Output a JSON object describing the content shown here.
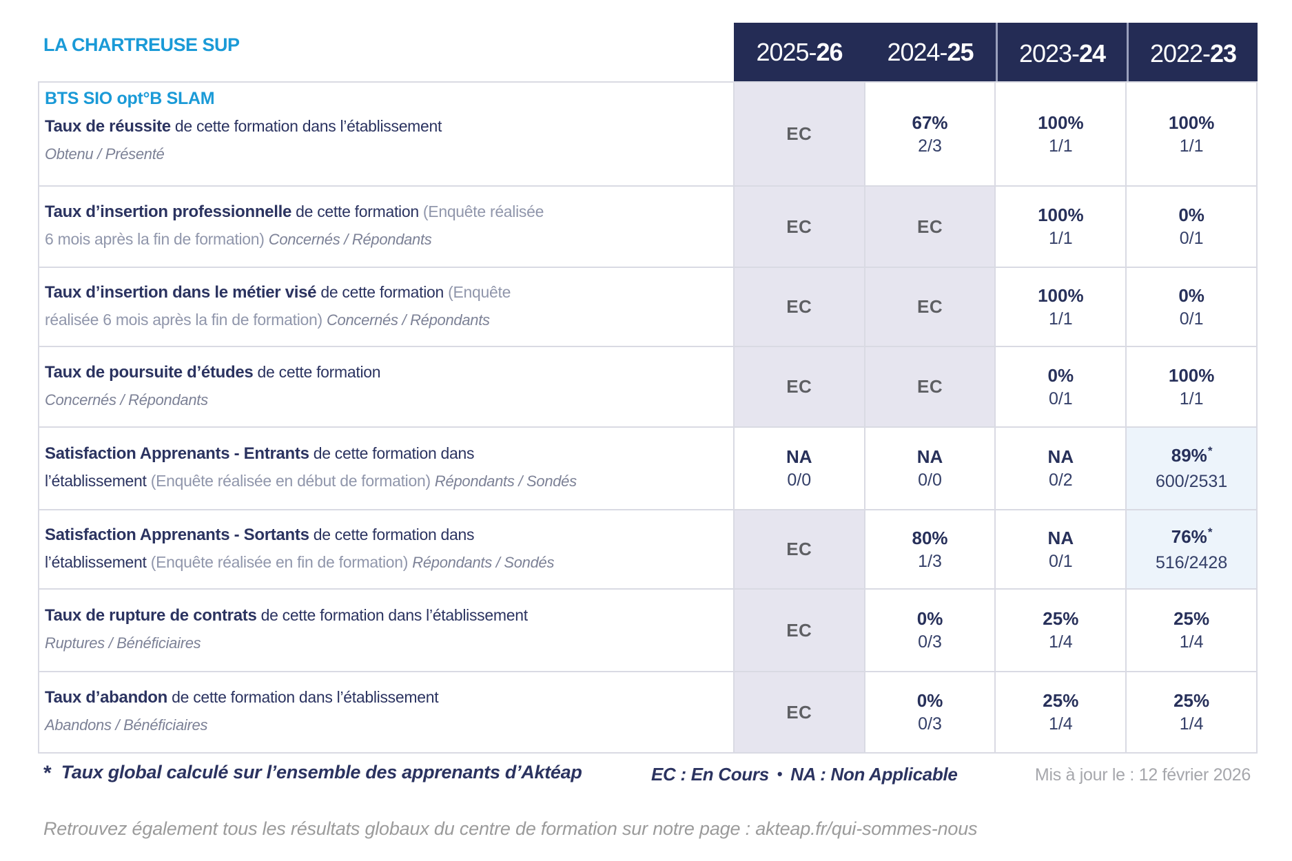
{
  "org_title": "LA CHARTREUSE SUP",
  "header": {
    "years": [
      {
        "key": "2025-26",
        "prefix": "2025-",
        "suffix": "26",
        "tall": false,
        "sep": false
      },
      {
        "key": "2024-25",
        "prefix": "2024-",
        "suffix": "25",
        "tall": false,
        "sep": false
      },
      {
        "key": "2023-24",
        "prefix": "2023-",
        "suffix": "24",
        "tall": true,
        "sep": true
      },
      {
        "key": "2022-23",
        "prefix": "2022-",
        "suffix": "23",
        "tall": true,
        "sep": true
      }
    ]
  },
  "table": {
    "rows": [
      {
        "name": "taux-de-reussite",
        "label_lines": [
          [
            [
              "p",
              "BTS SIO opt°B SLAM"
            ]
          ],
          [
            [
              "b",
              "Taux de réussite"
            ],
            [
              "n",
              " de cette formation dans l’établissement"
            ]
          ],
          [
            [
              "i",
              "Obtenu / Présenté"
            ]
          ]
        ],
        "cells": [
          {
            "kind": "ec",
            "bg": "lav"
          },
          {
            "kind": "val",
            "pct": "67%",
            "frac": "2/3"
          },
          {
            "kind": "val",
            "pct": "100%",
            "frac": "1/1"
          },
          {
            "kind": "val",
            "pct": "100%",
            "frac": "1/1"
          }
        ]
      },
      {
        "name": "taux-insertion-professionnelle",
        "label_lines": [
          [
            [
              "b",
              "Taux d’insertion professionnelle"
            ],
            [
              "n",
              " de cette formation "
            ],
            [
              "m",
              "(Enquête réalisée"
            ]
          ],
          [
            [
              "m",
              "6 mois après la fin de formation) "
            ],
            [
              "i",
              "Concernés / Répondants"
            ]
          ]
        ],
        "cells": [
          {
            "kind": "ec",
            "bg": "lav"
          },
          {
            "kind": "ec",
            "bg": "lav"
          },
          {
            "kind": "val",
            "pct": "100%",
            "frac": "1/1"
          },
          {
            "kind": "val",
            "pct": "0%",
            "frac": "0/1"
          }
        ]
      },
      {
        "name": "taux-insertion-metier-vise",
        "label_lines": [
          [
            [
              "b",
              "Taux d’insertion dans le métier visé"
            ],
            [
              "n",
              " de cette formation "
            ],
            [
              "m",
              "(Enquête"
            ]
          ],
          [
            [
              "m",
              "réalisée 6 mois après la fin de formation) "
            ],
            [
              "i",
              "Concernés / Répondants"
            ]
          ]
        ],
        "cells": [
          {
            "kind": "ec",
            "bg": "lav"
          },
          {
            "kind": "ec",
            "bg": "lav"
          },
          {
            "kind": "val",
            "pct": "100%",
            "frac": "1/1"
          },
          {
            "kind": "val",
            "pct": "0%",
            "frac": "0/1"
          }
        ]
      },
      {
        "name": "taux-poursuite-etudes",
        "label_lines": [
          [
            [
              "b",
              "Taux de poursuite d’études"
            ],
            [
              "n",
              " de cette formation"
            ]
          ],
          [
            [
              "i",
              "Concernés / Répondants"
            ]
          ]
        ],
        "cells": [
          {
            "kind": "ec",
            "bg": "lav"
          },
          {
            "kind": "ec",
            "bg": "lav"
          },
          {
            "kind": "val",
            "pct": "0%",
            "frac": "0/1"
          },
          {
            "kind": "val",
            "pct": "100%",
            "frac": "1/1"
          }
        ]
      },
      {
        "name": "satisfaction-apprenants-entrants",
        "label_lines": [
          [
            [
              "b",
              "Satisfaction Apprenants - Entrants"
            ],
            [
              "n",
              " de cette formation dans"
            ]
          ],
          [
            [
              "n",
              "l’établissement "
            ],
            [
              "m",
              "(Enquête réalisée en début de formation) "
            ],
            [
              "i",
              "Répondants / Sondés"
            ]
          ]
        ],
        "cells": [
          {
            "kind": "na",
            "frac": "0/0"
          },
          {
            "kind": "na",
            "frac": "0/0"
          },
          {
            "kind": "na",
            "frac": "0/2"
          },
          {
            "kind": "val",
            "pct": "89%",
            "star": true,
            "frac": "600/2531",
            "bg": "blue"
          }
        ]
      },
      {
        "name": "satisfaction-apprenants-sortants",
        "label_lines": [
          [
            [
              "b",
              "Satisfaction Apprenants - Sortants"
            ],
            [
              "n",
              " de cette formation dans"
            ]
          ],
          [
            [
              "n",
              "l’établissement "
            ],
            [
              "m",
              "(Enquête réalisée en fin de formation) "
            ],
            [
              "i",
              "Répondants / Sondés"
            ]
          ]
        ],
        "cells": [
          {
            "kind": "ec",
            "bg": "lav"
          },
          {
            "kind": "val",
            "pct": "80%",
            "frac": "1/3"
          },
          {
            "kind": "na",
            "frac": "0/1"
          },
          {
            "kind": "val",
            "pct": "76%",
            "star": true,
            "frac": "516/2428",
            "bg": "blue"
          }
        ]
      },
      {
        "name": "taux-rupture-contrats",
        "label_lines": [
          [
            [
              "b",
              "Taux de rupture de contrats"
            ],
            [
              "n",
              " de cette formation dans l’établissement"
            ]
          ],
          [
            [
              "i",
              "Ruptures / Bénéficiaires"
            ]
          ]
        ],
        "cells": [
          {
            "kind": "ec",
            "bg": "lav"
          },
          {
            "kind": "val",
            "pct": "0%",
            "frac": "0/3"
          },
          {
            "kind": "val",
            "pct": "25%",
            "frac": "1/4"
          },
          {
            "kind": "val",
            "pct": "25%",
            "frac": "1/4"
          }
        ]
      },
      {
        "name": "taux-abandon",
        "label_lines": [
          [
            [
              "b",
              "Taux d’abandon"
            ],
            [
              "n",
              " de cette formation dans l’établissement"
            ]
          ],
          [
            [
              "i",
              "Abandons / Bénéficiaires"
            ]
          ]
        ],
        "cells": [
          {
            "kind": "ec",
            "bg": "lav"
          },
          {
            "kind": "val",
            "pct": "0%",
            "frac": "0/3"
          },
          {
            "kind": "val",
            "pct": "25%",
            "frac": "1/4"
          },
          {
            "kind": "val",
            "pct": "25%",
            "frac": "1/4"
          }
        ]
      }
    ],
    "ec_label": "EC",
    "na_label": "NA"
  },
  "legend": {
    "star": "*",
    "star_note": "Taux global calculé sur l’ensemble des apprenants d’Aktéap",
    "ec": "EC : En Cours",
    "sep": "•",
    "na": "NA : Non Applicable",
    "updated": "Mis à jour le : 12 février 2026"
  },
  "bottom_note": "Retrouvez également tous les résultats globaux du centre de formation sur notre page : akteap.fr/qui-sommes-nous",
  "colors": {
    "accent_cyan": "#1a9ad7",
    "navy_text": "#2b3360",
    "header_bg": "#242c55",
    "ec_gray": "#5e5f63",
    "muted_gray_blue": "#9096ab",
    "lavender_cell_bg": "#e6e5ef",
    "light_blue_cell_bg": "#edf4fb",
    "border": "#d9dae3",
    "footer_gray": "#a6a7ac",
    "note_gray": "#9b9b9b"
  }
}
